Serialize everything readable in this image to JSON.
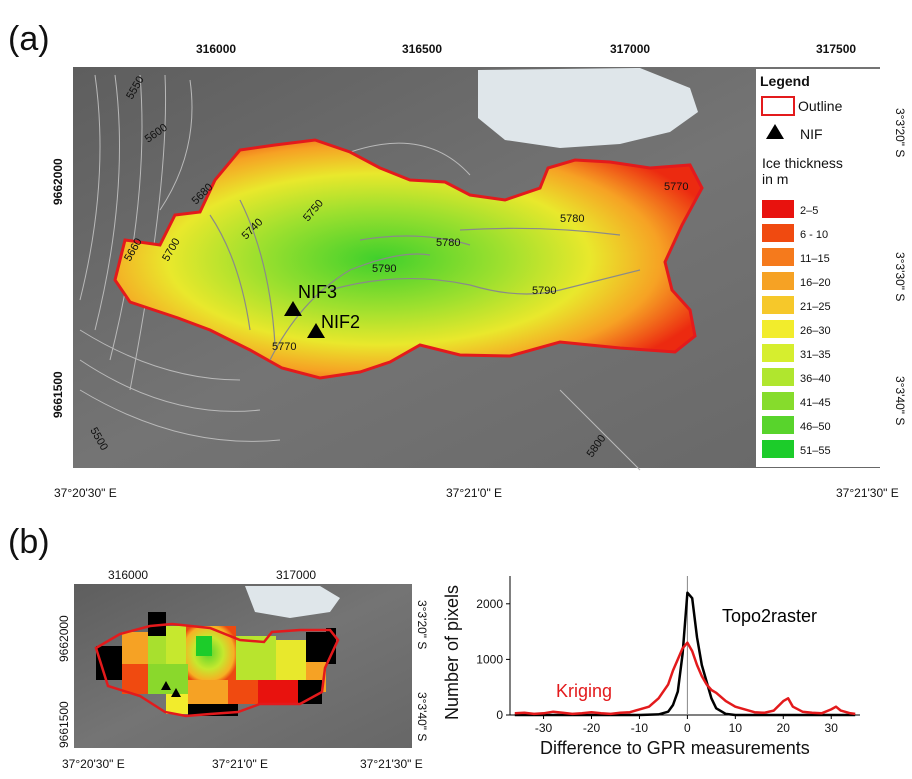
{
  "panel_a": {
    "label": "(a)",
    "top_ticks": [
      "316000",
      "316500",
      "317000",
      "317500"
    ],
    "left_ticks": [
      "9662000",
      "9661500"
    ],
    "bottom_ticks": [
      "37°20'30\" E",
      "37°21'0\" E",
      "37°21'30\" E"
    ],
    "right_ticks": [
      "3°3'20\" S",
      "3°3'30\" S",
      "3°3'40\" S"
    ],
    "contour_labels": [
      "5550",
      "5600",
      "5680",
      "5660",
      "5700",
      "5740",
      "5750",
      "5780",
      "5790",
      "5780",
      "5790",
      "5770",
      "5770",
      "5500",
      "5800"
    ],
    "markers": [
      "NIF3",
      "NIF2"
    ],
    "legend": {
      "title": "Legend",
      "outline_label": "Outline",
      "nif_label": "NIF",
      "thickness_title_1": "Ice thickness",
      "thickness_title_2": "in m",
      "classes": [
        {
          "label": "2–5",
          "color": "#e8120e"
        },
        {
          "label": "6 - 10",
          "color": "#f04a10"
        },
        {
          "label": "11–15",
          "color": "#f57a1c"
        },
        {
          "label": "16–20",
          "color": "#f6a224"
        },
        {
          "label": "21–25",
          "color": "#f6c82a"
        },
        {
          "label": "26–30",
          "color": "#f2ec2c"
        },
        {
          "label": "31–35",
          "color": "#d6ee2e"
        },
        {
          "label": "36–40",
          "color": "#b0e62e"
        },
        {
          "label": "41–45",
          "color": "#86dc2c"
        },
        {
          "label": "46–50",
          "color": "#58d42c"
        },
        {
          "label": "51–55",
          "color": "#1ccc2a"
        }
      ]
    }
  },
  "panel_b": {
    "label": "(b)",
    "top_ticks": [
      "316000",
      "317000"
    ],
    "left_ticks": [
      "9662000",
      "9661500"
    ],
    "bottom_ticks": [
      "37°20'30\" E",
      "37°21'0\" E",
      "37°21'30\" E"
    ],
    "right_ticks": [
      "3°3'20\" S",
      "3°3'40\" S"
    ]
  },
  "colors": {
    "topo2raster": "#000000",
    "kriging": "#e31a1c",
    "outline": "#e31a1c",
    "background": "#6d6d6d"
  },
  "chart_data": {
    "type": "line",
    "title": "",
    "xlabel": "Difference to GPR measurements",
    "ylabel": "Number of pixels",
    "xlim": [
      -37,
      36
    ],
    "ylim": [
      0,
      2500
    ],
    "xticks": [
      -30,
      -20,
      -10,
      0,
      10,
      20,
      30
    ],
    "yticks": [
      0,
      1000,
      2000
    ],
    "series": [
      {
        "name": "Topo2raster",
        "x": [
          -36,
          -20,
          -10,
          -6,
          -4,
          -3,
          -2,
          -1,
          0,
          1,
          2,
          3,
          4,
          5,
          6,
          8,
          10,
          35
        ],
        "y": [
          0,
          0,
          0,
          10,
          60,
          180,
          420,
          1100,
          2200,
          2100,
          1400,
          900,
          600,
          300,
          120,
          20,
          0,
          0
        ]
      },
      {
        "name": "Kriging",
        "x": [
          -36,
          -34,
          -32,
          -30,
          -28,
          -26,
          -24,
          -22,
          -20,
          -18,
          -16,
          -14,
          -12,
          -10,
          -8,
          -6,
          -4,
          -3,
          -2,
          -1,
          0,
          1,
          2,
          3,
          4,
          5,
          6,
          8,
          10,
          12,
          14,
          16,
          18,
          20,
          21,
          22,
          24,
          26,
          28,
          30,
          31,
          32,
          34,
          35
        ],
        "y": [
          30,
          40,
          20,
          30,
          60,
          40,
          20,
          30,
          50,
          30,
          20,
          40,
          50,
          100,
          150,
          300,
          550,
          800,
          1000,
          1200,
          1300,
          1150,
          900,
          700,
          550,
          450,
          400,
          250,
          150,
          100,
          50,
          40,
          80,
          250,
          300,
          150,
          60,
          40,
          30,
          100,
          150,
          80,
          30,
          20
        ]
      }
    ]
  }
}
